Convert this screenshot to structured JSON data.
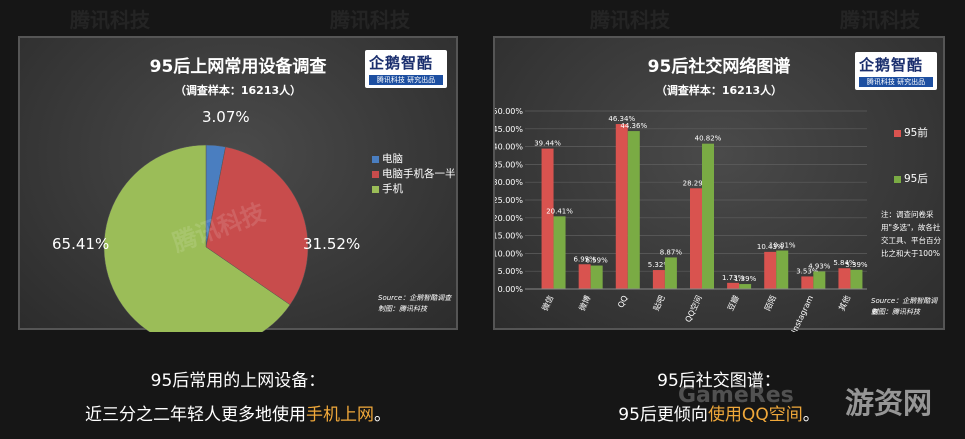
{
  "watermark": {
    "text": "腾讯科技",
    "site": "游资网",
    "site_en": "GameRes"
  },
  "left": {
    "logo": {
      "text": "企鹅智酷",
      "sub": "腾讯科技 研究出品"
    },
    "source": "Source：企鹅智酷调查",
    "producer": "制图：腾讯科技",
    "caption_line1": "95后常用的上网设备：",
    "caption_line2_pre": "近三分之二年轻人更多地使用",
    "caption_line2_hl": "手机上网",
    "caption_line2_post": "。"
  },
  "right": {
    "logo": {
      "text": "企鹅智酷",
      "sub": "腾讯科技 研究出品"
    },
    "note": "注：调查问卷采用\"多选\"，故各社交工具、平台百分比之和大于100%",
    "source": "Source：企鹅智酷调查",
    "producer": "制图：腾讯科技",
    "caption_line1": "95后社交图谱：",
    "caption_line2_pre": "95后更倾向",
    "caption_line2_hl": "使用QQ空间",
    "caption_line2_post": "。"
  },
  "chart_data": [
    {
      "type": "pie",
      "title": "95后上网常用设备调查",
      "subtitle": "（调查样本：16213人）",
      "slices": [
        {
          "label": "电脑",
          "value": 3.07,
          "value_label": "3.07%",
          "color": "#4a7ec0"
        },
        {
          "label": "电脑手机各一半",
          "value": 31.52,
          "value_label": "31.52%",
          "color": "#c84c4c"
        },
        {
          "label": "手机",
          "value": 65.41,
          "value_label": "65.41%",
          "color": "#9bbd58"
        }
      ],
      "legend_position": "right"
    },
    {
      "type": "bar",
      "title": "95后社交网络图谱",
      "subtitle": "（调查样本：16213人）",
      "categories": [
        "微信",
        "微博",
        "QQ",
        "贴吧",
        "QQ空间",
        "豆瓣",
        "陌陌",
        "Instagram",
        "其他"
      ],
      "series": [
        {
          "name": "95前",
          "color": "#d9534f",
          "values": [
            39.44,
            6.95,
            46.34,
            5.32,
            28.29,
            1.73,
            10.43,
            3.53,
            5.84
          ],
          "value_labels": [
            "39.44%",
            "6.95%",
            "46.34%",
            "5.32%",
            "28.29%",
            "1.73%",
            "10.43%",
            "3.53%",
            "5.84%"
          ]
        },
        {
          "name": "95后",
          "color": "#7aab44",
          "values": [
            20.41,
            6.59,
            44.36,
            8.87,
            40.82,
            1.39,
            10.81,
            4.93,
            5.39
          ],
          "value_labels": [
            "20.41%",
            "6.59%",
            "44.36%",
            "8.87%",
            "40.82%",
            "1.39%",
            "10.81%",
            "4.93%",
            "5.39%"
          ]
        }
      ],
      "ylim": [
        0,
        50
      ],
      "yticks": [
        "0.00%",
        "5.00%",
        "10.00%",
        "15.00%",
        "20.00%",
        "25.00%",
        "30.00%",
        "35.00%",
        "40.00%",
        "45.00%",
        "50.00%"
      ],
      "grid": true,
      "legend_position": "right"
    }
  ]
}
